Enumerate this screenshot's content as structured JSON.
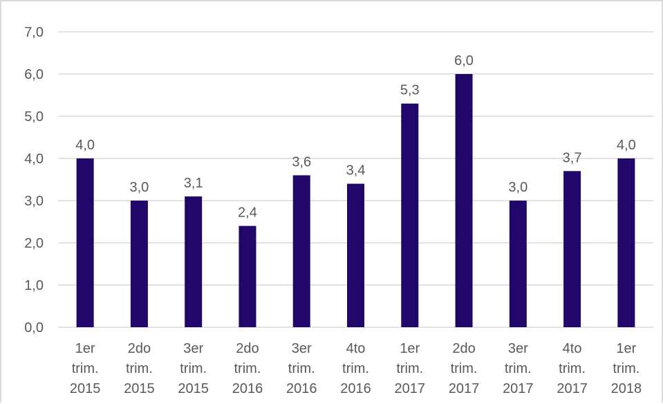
{
  "chart_data": {
    "type": "bar",
    "categories": [
      [
        "1er",
        "trim.",
        "2015"
      ],
      [
        "2do",
        "trim.",
        "2015"
      ],
      [
        "3er",
        "trim.",
        "2015"
      ],
      [
        "2do",
        "trim.",
        "2016"
      ],
      [
        "3er",
        "trim.",
        "2016"
      ],
      [
        "4to",
        "trim.",
        "2016"
      ],
      [
        "1er",
        "trim.",
        "2017"
      ],
      [
        "2do",
        "trim.",
        "2017"
      ],
      [
        "3er",
        "trim.",
        "2017"
      ],
      [
        "4to",
        "trim.",
        "2017"
      ],
      [
        "1er",
        "trim.",
        "2018"
      ]
    ],
    "values": [
      4.0,
      3.0,
      3.1,
      2.4,
      3.6,
      3.4,
      5.3,
      6.0,
      3.0,
      3.7,
      4.0
    ],
    "data_labels": [
      "4,0",
      "3,0",
      "3,1",
      "2,4",
      "3,6",
      "3,4",
      "5,3",
      "6,0",
      "3,0",
      "3,7",
      "4,0"
    ],
    "y_ticks": [
      0,
      1,
      2,
      3,
      4,
      5,
      6,
      7
    ],
    "y_tick_labels": [
      "0,0",
      "1,0",
      "2,0",
      "3,0",
      "4,0",
      "5,0",
      "6,0",
      "7,0"
    ],
    "ylim": [
      0,
      7
    ],
    "grid": true,
    "bar_color": "#22076b",
    "title": "",
    "xlabel": "",
    "ylabel": ""
  }
}
